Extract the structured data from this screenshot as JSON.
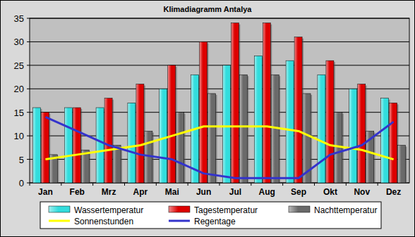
{
  "chart_data": {
    "type": "bar",
    "title": "Klimadiagramm Antalya",
    "categories": [
      "Jan",
      "Feb",
      "Mrz",
      "Apr",
      "Mai",
      "Jun",
      "Jul",
      "Aug",
      "Sep",
      "Okt",
      "Nov",
      "Dez"
    ],
    "series": [
      {
        "name": "Wassertemperatur",
        "type": "bar",
        "color": "#33dddd",
        "values": [
          16,
          16,
          16,
          17,
          20,
          23,
          25,
          27,
          26,
          23,
          20,
          18
        ]
      },
      {
        "name": "Tagestemperatur",
        "type": "bar",
        "color": "#dd0000",
        "values": [
          15,
          16,
          18,
          21,
          25,
          30,
          34,
          34,
          31,
          26,
          21,
          17
        ]
      },
      {
        "name": "Nachttemperatur",
        "type": "bar",
        "color": "#6a6a6a",
        "values": [
          6,
          7,
          8,
          11,
          15,
          19,
          23,
          23,
          19,
          15,
          11,
          8
        ]
      },
      {
        "name": "Sonnenstunden",
        "type": "line",
        "color": "#ffff00",
        "values": [
          5,
          6,
          7,
          8,
          10,
          12,
          12,
          12,
          11,
          8,
          7,
          5
        ]
      },
      {
        "name": "Regentage",
        "type": "line",
        "color": "#3333cc",
        "values": [
          14,
          11,
          8,
          6,
          5,
          2,
          1,
          1,
          1,
          6,
          8,
          13
        ]
      }
    ],
    "ylim": [
      0,
      35
    ],
    "yticks": [
      0,
      5,
      10,
      15,
      20,
      25,
      30,
      35
    ],
    "grid": true,
    "legend": "bottom"
  }
}
